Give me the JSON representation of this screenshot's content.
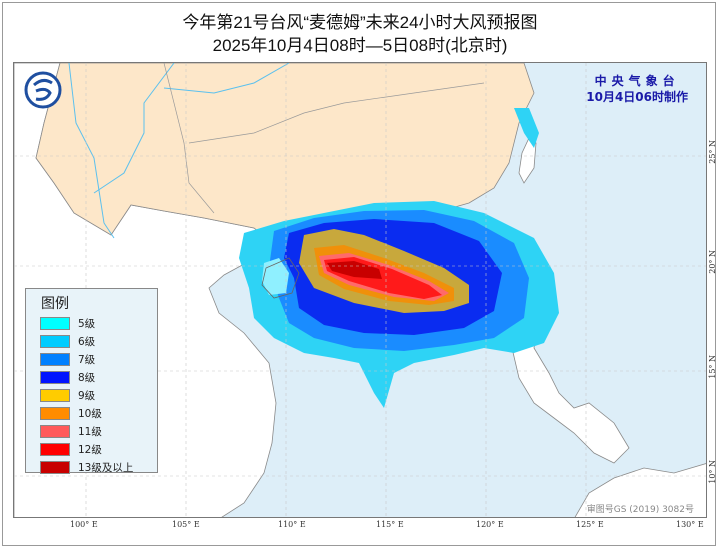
{
  "title": {
    "line1": "今年第21号台风“麦德姆”未来24小时大风预报图",
    "line2": "2025年10月4日08时—5日08时(北京时)"
  },
  "agency": {
    "name": "中央气象台",
    "issued": "10月4日06时制作"
  },
  "map_approval": "审图号GS (2019) 3082号",
  "logo": {
    "icon": "cma-logo-icon"
  },
  "legend": {
    "title": "图例",
    "items": [
      {
        "label": "5级",
        "color": "#00ffff"
      },
      {
        "label": "6级",
        "color": "#00ccff"
      },
      {
        "label": "7级",
        "color": "#0080ff"
      },
      {
        "label": "8级",
        "color": "#0014ff"
      },
      {
        "label": "9级",
        "color": "#ffcc00"
      },
      {
        "label": "10级",
        "color": "#ff8c00"
      },
      {
        "label": "11级",
        "color": "#ff5a5a"
      },
      {
        "label": "12级",
        "color": "#ff0000"
      },
      {
        "label": "13级及以上",
        "color": "#c80000"
      }
    ]
  },
  "axes": {
    "longitude_labels": [
      "100° E",
      "105° E",
      "110° E",
      "115° E",
      "120° E",
      "125° E",
      "130° E"
    ],
    "latitude_labels": [
      "25° N",
      "20° N",
      "15° N",
      "10° N"
    ]
  },
  "colors": {
    "sea": "#ddeef8",
    "china_land": "#fde7c9",
    "other_land": "#ffffff",
    "border": "#8a8a8a"
  }
}
